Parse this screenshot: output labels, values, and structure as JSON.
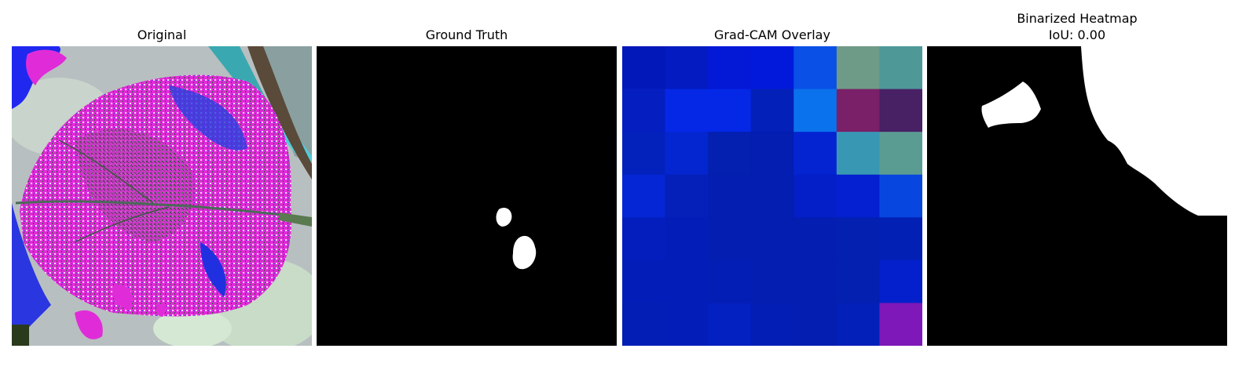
{
  "panels": [
    {
      "title": "Original"
    },
    {
      "title": "Ground Truth"
    },
    {
      "title": "Grad-CAM Overlay"
    },
    {
      "title": "Binarized Heatmap",
      "subtitle": "IoU: 0.00"
    }
  ],
  "gradcam": {
    "grid_cols": 7,
    "grid_rows": 7,
    "cells": [
      [
        "#0318b8",
        "#031bc0",
        "#0419d6",
        "#0219dc",
        "#0a4fe6",
        "#6e9a88",
        "#4e9898"
      ],
      [
        "#041ec0",
        "#0527e6",
        "#0527e6",
        "#0320b8",
        "#0a72ec",
        "#7a2068",
        "#482064"
      ],
      [
        "#0322bc",
        "#0426d0",
        "#0320b0",
        "#031eb0",
        "#0424d2",
        "#3898b4",
        "#5a9c92"
      ],
      [
        "#0426d4",
        "#0420b8",
        "#031eb0",
        "#031eb0",
        "#041ec8",
        "#0420d0",
        "#0846e0"
      ],
      [
        "#031ebc",
        "#031eb8",
        "#031eb0",
        "#031eb0",
        "#031eb0",
        "#0320b0",
        "#0320b4"
      ],
      [
        "#031eb8",
        "#031eb8",
        "#031eb4",
        "#031eb0",
        "#031eb0",
        "#0320b0",
        "#0320cc"
      ],
      [
        "#031eb4",
        "#031eb8",
        "#0320c0",
        "#031eb4",
        "#031eb0",
        "#0320b8",
        "#7e18b8"
      ]
    ]
  }
}
